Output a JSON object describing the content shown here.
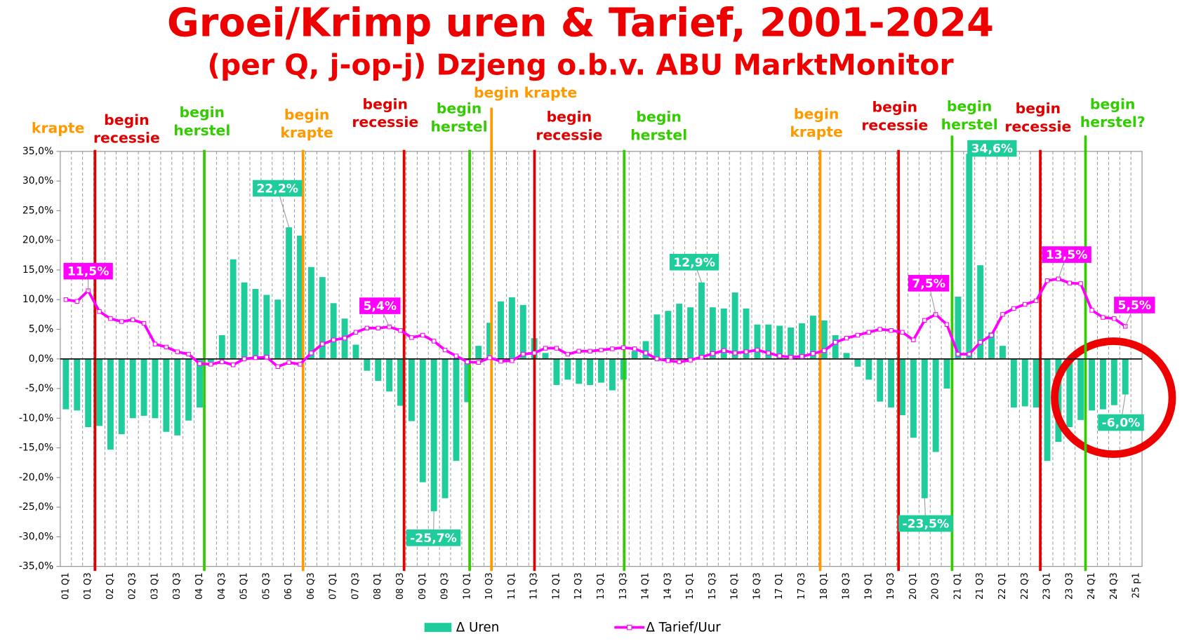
{
  "chart_data": {
    "type": "bar-line",
    "title": "Groei/Krimp uren & Tarief, 2001-2024",
    "subtitle": "(per Q, j-op-j) Dzjeng o.b.v. ABU MarktMonitor",
    "categories": [
      "01 Q1",
      null,
      "01 Q3",
      null,
      "02 Q1",
      null,
      "02 Q3",
      null,
      "03 Q1",
      null,
      "03 Q3",
      null,
      "04 Q1",
      null,
      "04 Q3",
      null,
      "05 Q1",
      null,
      "05 Q3",
      null,
      "06 Q1",
      null,
      "06 Q3",
      null,
      "07 Q1",
      null,
      "07 Q3",
      null,
      "08 Q1",
      null,
      "08 Q3",
      null,
      "09 Q1",
      null,
      "09 Q3",
      null,
      "10 Q1",
      null,
      "10 Q3",
      null,
      "11 Q1",
      null,
      "11 Q3",
      null,
      "12 Q1",
      null,
      "12 Q3",
      null,
      "13 Q1",
      null,
      "13 Q3",
      null,
      "14 Q1",
      null,
      "14 Q3",
      null,
      "15 Q1",
      null,
      "15 Q3",
      null,
      "16 Q1",
      null,
      "16 Q3",
      null,
      "17 Q1",
      null,
      "17 Q3",
      null,
      "18 Q1",
      null,
      "18 Q3",
      null,
      "19 Q1",
      null,
      "19 Q3",
      null,
      "20 Q1",
      null,
      "20 Q3",
      null,
      "21 Q1",
      null,
      "21 Q3",
      null,
      "22 Q1",
      null,
      "22 Q3",
      null,
      "23 Q1",
      null,
      "23 Q3",
      null,
      "24 Q1",
      null,
      "24 Q3",
      null,
      "25 p1"
    ],
    "series": [
      {
        "name": "Δ Uren",
        "kind": "bar",
        "color": "#1fcc9c",
        "values": [
          -8.5,
          -8.7,
          -11.5,
          -11.3,
          -15.3,
          -12.7,
          -10.0,
          -9.6,
          -10.0,
          -12.3,
          -12.9,
          -10.4,
          -8.2,
          -0.5,
          4.0,
          16.8,
          12.9,
          11.8,
          10.8,
          10.0,
          22.2,
          20.8,
          15.5,
          13.8,
          9.4,
          6.8,
          2.4,
          -2.0,
          -3.7,
          -5.5,
          -7.9,
          -10.5,
          -20.8,
          -25.7,
          -23.5,
          -17.2,
          -7.3,
          2.2,
          6.1,
          9.7,
          10.4,
          9.1,
          3.5,
          1.0,
          -4.4,
          -3.5,
          -4.2,
          -4.4,
          -4.0,
          -5.3,
          -3.5,
          1.3,
          3.0,
          7.5,
          8.1,
          9.3,
          8.7,
          12.9,
          8.7,
          8.5,
          11.2,
          8.5,
          5.8,
          5.8,
          5.6,
          5.3,
          6.0,
          7.3,
          6.5,
          4.0,
          1.0,
          -1.3,
          -3.5,
          -7.2,
          -8.2,
          -9.5,
          -13.3,
          -23.5,
          -15.7,
          -5.0,
          10.5,
          34.6,
          15.8,
          4.5,
          2.2,
          -8.2,
          -8.0,
          -8.2,
          -17.2,
          -14.0,
          -11.5,
          -10.3,
          -8.7,
          -8.5,
          -7.8,
          -6.0,
          null
        ],
        "value_labels": [
          null,
          null,
          null,
          null,
          null,
          null,
          null,
          null,
          null,
          null,
          null,
          null,
          null,
          null,
          null,
          null,
          null,
          null,
          null,
          null,
          "22,2%",
          null,
          null,
          null,
          null,
          null,
          null,
          null,
          null,
          null,
          null,
          null,
          null,
          "-25,7%",
          null,
          null,
          null,
          null,
          null,
          null,
          null,
          null,
          null,
          null,
          null,
          null,
          null,
          null,
          null,
          null,
          null,
          null,
          null,
          null,
          null,
          null,
          null,
          "12,9%",
          null,
          null,
          null,
          null,
          null,
          null,
          null,
          null,
          null,
          null,
          null,
          null,
          null,
          null,
          null,
          null,
          null,
          null,
          null,
          "-23,5%",
          null,
          null,
          null,
          "34,6%",
          null,
          null,
          null,
          null,
          null,
          null,
          null,
          null,
          null,
          null,
          null,
          null,
          null,
          "-6,0%",
          null
        ]
      },
      {
        "name": "Δ Tarief/Uur",
        "kind": "line",
        "color": "#ff00ff",
        "values": [
          10.0,
          9.7,
          11.5,
          8.0,
          6.8,
          6.3,
          6.6,
          6.0,
          2.5,
          2.0,
          1.2,
          0.8,
          -0.8,
          -0.9,
          -0.5,
          -1.0,
          0.0,
          0.2,
          0.3,
          -1.3,
          -0.6,
          -0.9,
          1.0,
          2.5,
          3.2,
          3.5,
          4.5,
          5.2,
          5.2,
          5.4,
          4.8,
          3.6,
          4.0,
          3.0,
          1.5,
          0.5,
          -0.5,
          -0.6,
          0.2,
          -0.4,
          -0.3,
          0.8,
          1.0,
          1.8,
          1.8,
          0.8,
          1.3,
          1.3,
          1.5,
          1.7,
          1.9,
          1.7,
          1.0,
          0.0,
          -0.3,
          -0.5,
          -0.2,
          0.3,
          0.9,
          1.4,
          1.0,
          1.2,
          1.5,
          1.0,
          0.5,
          0.3,
          0.4,
          0.9,
          1.4,
          2.8,
          3.5,
          4.0,
          4.5,
          5.0,
          4.8,
          4.5,
          3.2,
          6.5,
          7.5,
          5.8,
          0.8,
          0.8,
          2.8,
          4.0,
          7.5,
          8.5,
          9.2,
          9.8,
          13.2,
          13.5,
          12.8,
          12.7,
          8.2,
          7.0,
          6.8,
          5.5,
          null
        ],
        "value_labels": [
          null,
          null,
          "11,5%",
          null,
          null,
          null,
          null,
          null,
          null,
          null,
          null,
          null,
          null,
          null,
          null,
          null,
          null,
          null,
          null,
          null,
          null,
          null,
          null,
          null,
          null,
          null,
          null,
          null,
          null,
          "5,4%",
          null,
          null,
          null,
          null,
          null,
          null,
          null,
          null,
          null,
          null,
          null,
          null,
          null,
          null,
          null,
          null,
          null,
          null,
          null,
          null,
          null,
          null,
          null,
          null,
          null,
          null,
          null,
          null,
          null,
          null,
          null,
          null,
          null,
          null,
          null,
          null,
          null,
          null,
          null,
          null,
          null,
          null,
          null,
          null,
          null,
          null,
          null,
          null,
          "7,5%",
          null,
          null,
          null,
          null,
          null,
          null,
          null,
          null,
          null,
          null,
          "13,5%",
          null,
          null,
          null,
          null,
          null,
          "5,5%",
          null
        ]
      }
    ],
    "ylim": [
      -35,
      35
    ],
    "yticks": [
      {
        "value": -35,
        "label": "-35,0%"
      },
      {
        "value": -30,
        "label": "-30,0%"
      },
      {
        "value": -25,
        "label": "-25,0%"
      },
      {
        "value": -20,
        "label": "-20,0%"
      },
      {
        "value": -15,
        "label": "-15,0%"
      },
      {
        "value": -10,
        "label": "-10,0%"
      },
      {
        "value": -5,
        "label": "-5,0%"
      },
      {
        "value": 0,
        "label": "0,0%"
      },
      {
        "value": 5,
        "label": "5,0%"
      },
      {
        "value": 10,
        "label": "10,0%"
      },
      {
        "value": 15,
        "label": "15,0%"
      },
      {
        "value": 20,
        "label": "20,0%"
      },
      {
        "value": 25,
        "label": "25,0%"
      },
      {
        "value": 30,
        "label": "30,0%"
      },
      {
        "value": 35,
        "label": "35,0%"
      }
    ],
    "legend": "bottom",
    "annotations": [
      {
        "text": [
          "krapte"
        ],
        "color": "#ff9900"
      },
      {
        "text": [
          "begin",
          "recessie"
        ],
        "color": "#e00000"
      },
      {
        "text": [
          "begin",
          "herstel"
        ],
        "color": "#33cc00"
      },
      {
        "text": [
          "begin",
          "krapte"
        ],
        "color": "#ff9900"
      },
      {
        "text": [
          "begin",
          "recessie"
        ],
        "color": "#e00000"
      },
      {
        "text": [
          "begin",
          "herstel"
        ],
        "color": "#33cc00"
      },
      {
        "text": [
          "begin krapte"
        ],
        "color": "#ff9900"
      },
      {
        "text": [
          "begin",
          "recessie"
        ],
        "color": "#e00000"
      },
      {
        "text": [
          "begin",
          "herstel"
        ],
        "color": "#33cc00"
      },
      {
        "text": [
          "begin",
          "krapte"
        ],
        "color": "#ff9900"
      },
      {
        "text": [
          "begin",
          "recessie"
        ],
        "color": "#e00000"
      },
      {
        "text": [
          "begin",
          "herstel"
        ],
        "color": "#33cc00"
      },
      {
        "text": [
          "begin",
          "recessie"
        ],
        "color": "#e00000"
      },
      {
        "text": [
          "begin",
          "herstel?"
        ],
        "color": "#33cc00"
      }
    ]
  }
}
